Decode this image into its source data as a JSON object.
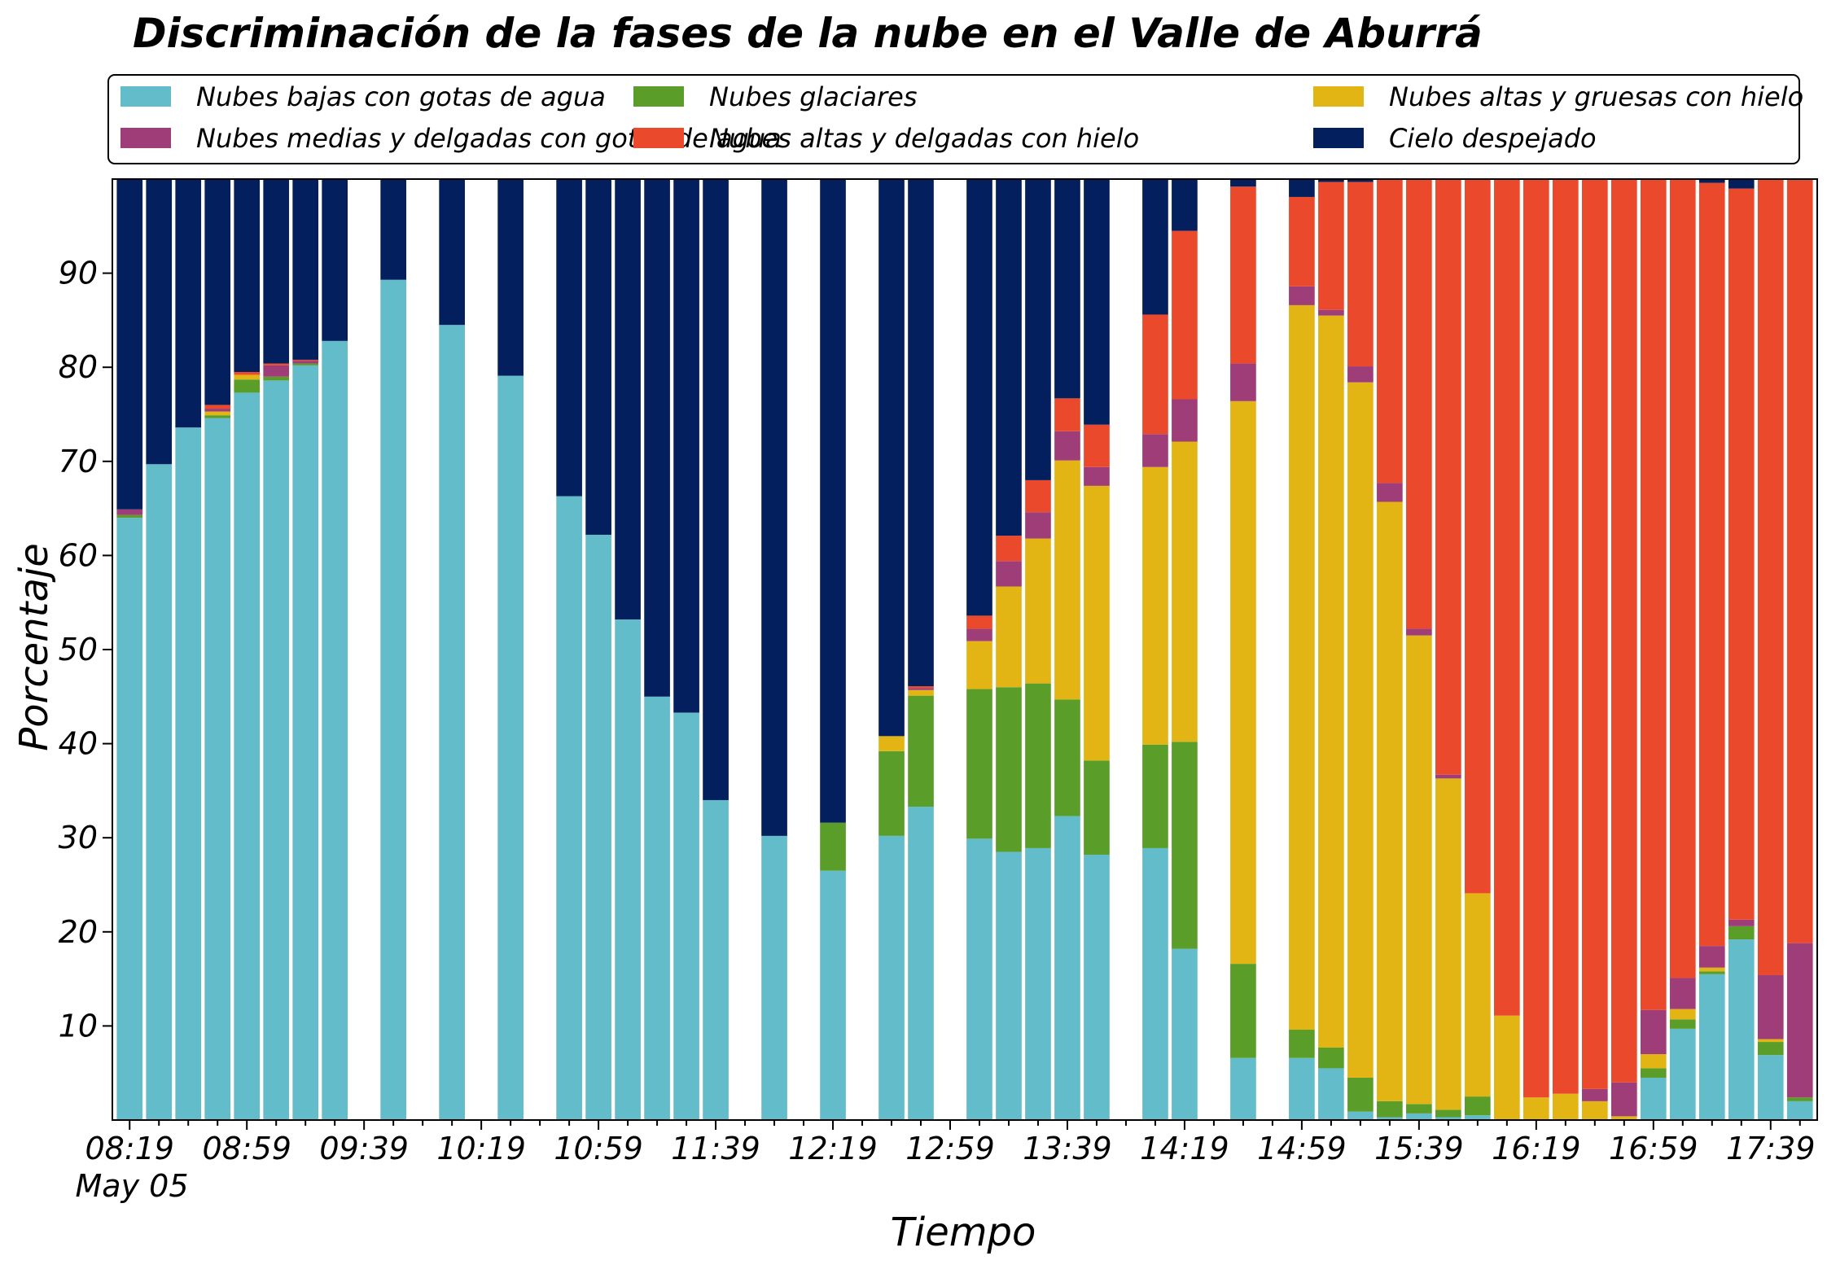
{
  "chart_data": {
    "type": "bar",
    "stacked": true,
    "title": "Discriminación de la fases de la nube en el Valle de Aburrá",
    "xlabel": "Tiempo",
    "ylabel": "Porcentaje",
    "ylim": [
      0,
      100
    ],
    "yticks": [
      10,
      20,
      30,
      40,
      50,
      60,
      70,
      80,
      90
    ],
    "xticks": [
      "08:19",
      "08:59",
      "09:39",
      "10:19",
      "10:59",
      "11:39",
      "12:19",
      "12:59",
      "13:39",
      "14:19",
      "14:59",
      "15:39",
      "16:19",
      "16:59",
      "17:39"
    ],
    "x_date_label": "May 05",
    "legend_position": "top",
    "legend_columns": 3,
    "grid": false,
    "x": [
      "08:19",
      "08:29",
      "08:39",
      "08:49",
      "08:59",
      "09:09",
      "09:19",
      "09:29",
      "09:39",
      "09:49",
      "09:59",
      "10:09",
      "10:19",
      "10:29",
      "10:39",
      "10:49",
      "10:59",
      "11:09",
      "11:19",
      "11:29",
      "11:39",
      "11:49",
      "11:59",
      "12:09",
      "12:19",
      "12:29",
      "12:39",
      "12:49",
      "12:59",
      "13:09",
      "13:19",
      "13:29",
      "13:39",
      "13:49",
      "13:59",
      "14:09",
      "14:19",
      "14:29",
      "14:39",
      "14:49",
      "14:59",
      "15:09",
      "15:19",
      "15:29",
      "15:39",
      "15:49",
      "15:59",
      "16:09",
      "16:19",
      "16:29",
      "16:39",
      "16:49",
      "16:59",
      "17:09",
      "17:19",
      "17:29",
      "17:39",
      "17:49"
    ],
    "series": [
      {
        "name": "Nubes bajas con gotas de agua",
        "color": "#63bcc9",
        "values": [
          64,
          69.7,
          73.6,
          74.6,
          77.3,
          78.6,
          80.2,
          82.8,
          null,
          89.3,
          null,
          84.5,
          null,
          79.1,
          null,
          66.3,
          62.2,
          53.2,
          45,
          43.3,
          34,
          null,
          30.2,
          null,
          26.5,
          null,
          30.2,
          33.3,
          null,
          29.9,
          28.5,
          28.9,
          32.3,
          28.2,
          null,
          28.9,
          18.2,
          null,
          6.6,
          null,
          6.6,
          5.5,
          0.9,
          0.3,
          0.7,
          0.3,
          0.5,
          0,
          0,
          0,
          0,
          0,
          4.5,
          9.7,
          15.5,
          19.2,
          6.9,
          2
        ]
      },
      {
        "name": "Nubes glaciares",
        "color": "#5a9e29",
        "values": [
          0.3,
          0,
          0,
          0.3,
          1.4,
          0.4,
          0.2,
          0,
          null,
          0,
          null,
          0,
          null,
          0,
          null,
          0,
          0,
          0,
          0,
          0,
          0,
          null,
          0,
          null,
          5.1,
          null,
          9,
          11.8,
          null,
          15.9,
          17.5,
          17.5,
          12.4,
          10,
          null,
          11,
          22,
          null,
          10,
          null,
          3,
          2.2,
          3.6,
          1.7,
          1,
          0.8,
          2,
          0,
          0,
          0,
          0,
          0,
          1,
          1,
          0.3,
          1.4,
          1.4,
          0.4
        ]
      },
      {
        "name": "Nubes altas y gruesas con hielo",
        "color": "#e3b514",
        "values": [
          0,
          0,
          0,
          0.4,
          0.5,
          0,
          0,
          0,
          null,
          0,
          null,
          0,
          null,
          0,
          null,
          0,
          0,
          0,
          0,
          0,
          0,
          null,
          0,
          null,
          0,
          null,
          1.6,
          0.6,
          null,
          5.1,
          10.7,
          15.4,
          25.4,
          29.2,
          null,
          29.5,
          31.9,
          null,
          59.8,
          null,
          77,
          77.8,
          73.9,
          63.7,
          49.8,
          35.2,
          21.6,
          11.1,
          2.4,
          2.8,
          2,
          0.4,
          1.5,
          1.1,
          0.4,
          0,
          0.3,
          0
        ]
      },
      {
        "name": "Nubes medias y delgadas con gotas de agua",
        "color": "#9e3d77",
        "values": [
          0.6,
          0,
          0,
          0.3,
          0,
          1.2,
          0.3,
          0,
          null,
          0,
          null,
          0,
          null,
          0,
          null,
          0,
          0,
          0,
          0,
          0,
          0,
          null,
          0,
          null,
          0,
          null,
          0,
          0.2,
          null,
          1.3,
          2.7,
          2.8,
          3.1,
          2,
          null,
          3.5,
          4.5,
          null,
          4,
          null,
          2,
          0.6,
          1.7,
          2,
          0.7,
          0.4,
          0,
          0,
          0,
          0,
          1.3,
          3.6,
          4.7,
          3.3,
          2.3,
          0.7,
          6.8,
          16.4
        ]
      },
      {
        "name": "Nubes altas y delgadas con hielo",
        "color": "#ea4a2b",
        "values": [
          0,
          0,
          0,
          0.4,
          0.3,
          0.2,
          0.1,
          0,
          null,
          0,
          null,
          0,
          null,
          0,
          null,
          0,
          0,
          0,
          0,
          0,
          0,
          null,
          0,
          null,
          0,
          null,
          0,
          0.2,
          null,
          1.4,
          2.7,
          3.4,
          3.5,
          4.5,
          null,
          12.7,
          17.9,
          null,
          18.8,
          null,
          9.5,
          13.6,
          19.6,
          32.3,
          47.8,
          63.3,
          75.9,
          88.9,
          97.6,
          97.2,
          96.7,
          96,
          88.3,
          84.9,
          81.1,
          77.7,
          84.6,
          81.1
        ]
      },
      {
        "name": "Cielo despejado",
        "color": "#041f5e",
        "values": [
          35.1,
          30.3,
          26.4,
          24,
          20.5,
          19.6,
          19.2,
          17.2,
          null,
          10.7,
          null,
          15.5,
          null,
          20.9,
          null,
          33.7,
          37.8,
          46.8,
          55,
          56.7,
          66,
          null,
          69.8,
          null,
          68.4,
          null,
          59.2,
          53.9,
          null,
          46.4,
          37.9,
          32,
          23.3,
          26.1,
          null,
          14.4,
          5.5,
          null,
          0.8,
          null,
          1.9,
          0.3,
          0.3,
          0,
          0,
          0,
          0,
          0,
          0,
          0,
          0,
          0,
          0,
          0,
          0.4,
          1,
          0,
          0.1
        ]
      }
    ]
  }
}
